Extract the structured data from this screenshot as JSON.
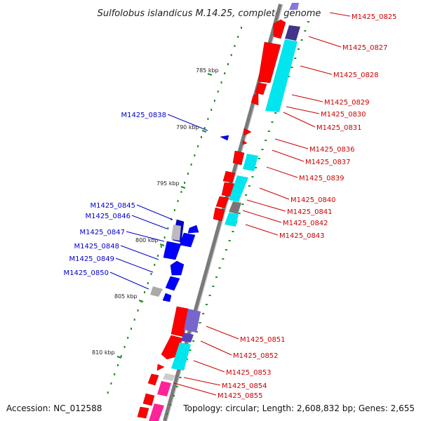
{
  "title": "Sulfolobus islandicus M.14.25, complete genome",
  "footer": {
    "accession": "Accession: NC_012588",
    "summary": "Topology: circular; Length: 2,608,832 bp; Genes: 2,655"
  },
  "colors": {
    "forward": "#ff0000",
    "reverse": "#0000ff",
    "cds_cyan": "#00e5ee",
    "cds_purple": "#6655dd",
    "cds_magenta": "#ff2299",
    "cds_gray": "#888888",
    "skew_green": "#1f8f1f",
    "backbone": "#888888"
  },
  "kbp_ticks": [
    "785 kbp",
    "790 kbp",
    "795 kbp",
    "800 kbp",
    "805 kbp",
    "810 kbp"
  ],
  "genes_right": [
    "M1425_0825",
    "M1425_0827",
    "M1425_0828",
    "M1425_0829",
    "M1425_0830",
    "M1425_0831",
    "M1425_0836",
    "M1425_0837",
    "M1425_0839",
    "M1425_0840",
    "M1425_0841",
    "M1425_0842",
    "M1425_0843",
    "M1425_0851",
    "M1425_0852",
    "M1425_0853",
    "M1425_0854",
    "M1425_0855"
  ],
  "genes_left": [
    "M1425_0838",
    "M1425_0845",
    "M1425_0846",
    "M1425_0847",
    "M1425_0848",
    "M1425_0849",
    "M1425_0850"
  ]
}
